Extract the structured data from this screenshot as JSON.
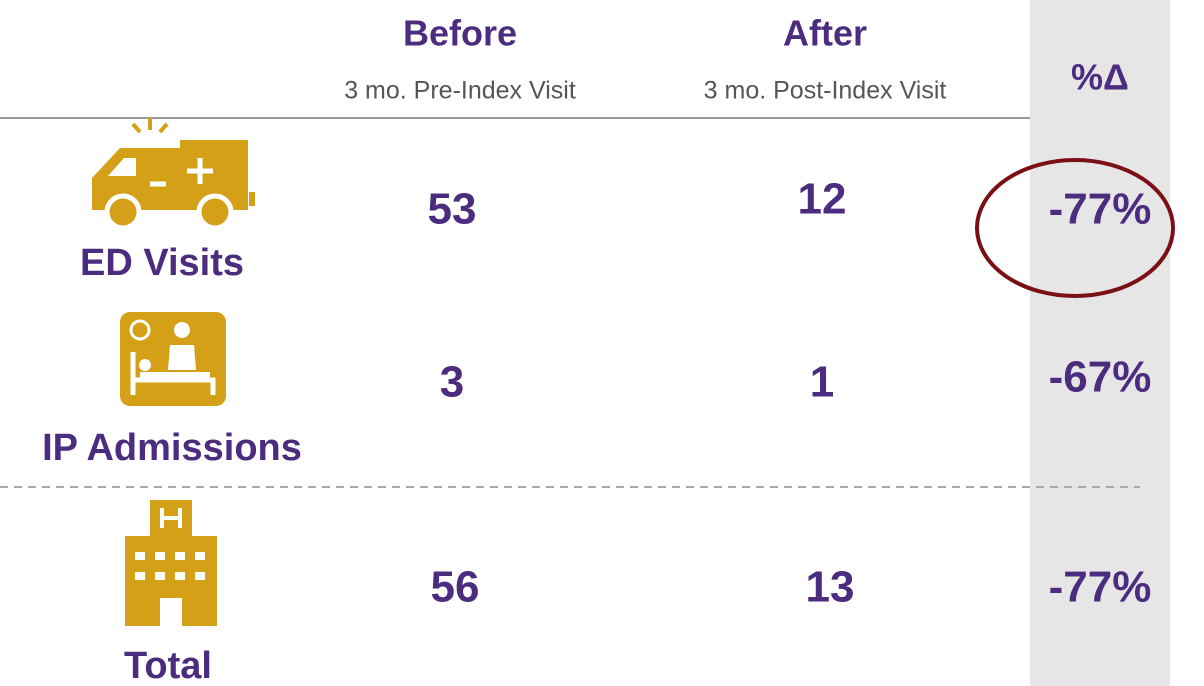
{
  "table": {
    "columns": [
      {
        "title": "Before",
        "subtitle": "3 mo. Pre-Index Visit"
      },
      {
        "title": "After",
        "subtitle": "3 mo. Post-Index Visit"
      },
      {
        "title": "%Δ"
      }
    ],
    "rows": [
      {
        "label": "ED Visits",
        "before": 53,
        "after": 12,
        "change": "-77%"
      },
      {
        "label": "IP Admissions",
        "before": 3,
        "after": 1,
        "change": "-67%"
      },
      {
        "label": "Total",
        "before": 56,
        "after": 13,
        "change": "-77%"
      }
    ]
  }
}
